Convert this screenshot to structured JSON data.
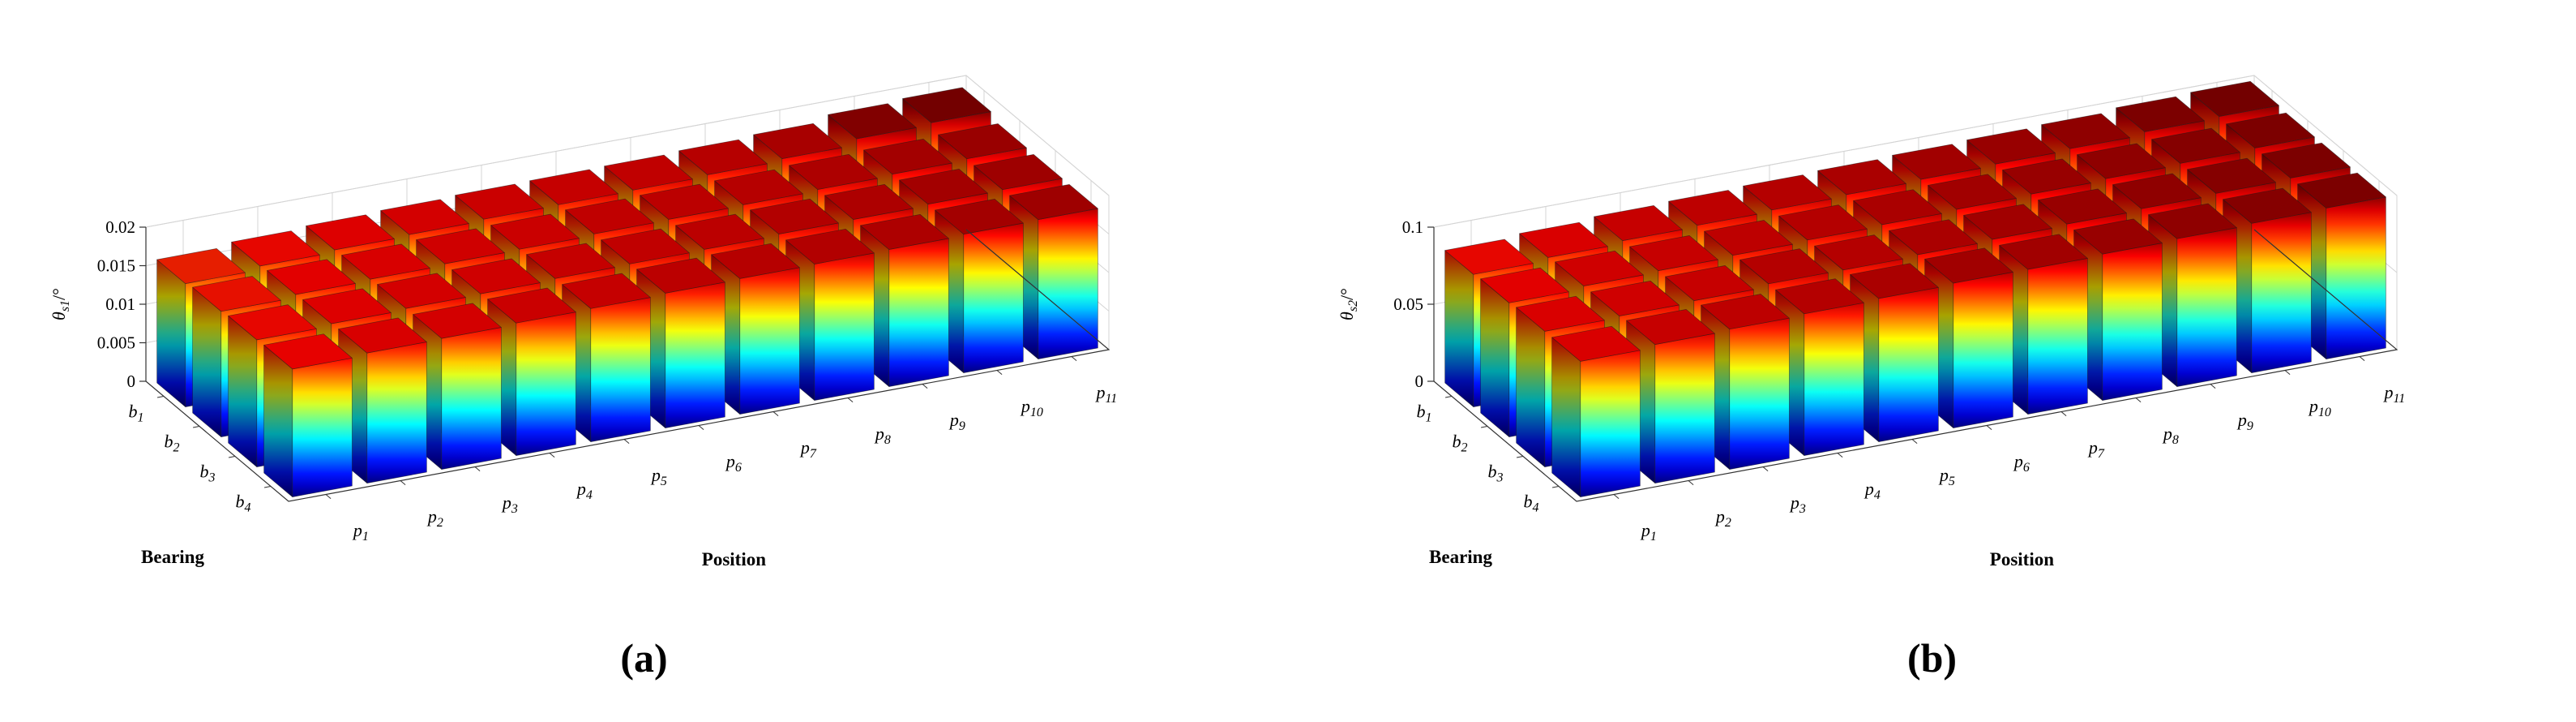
{
  "figure": {
    "background": "#ffffff"
  },
  "chart_data": [
    {
      "type": "bar",
      "subtype": "bar3d",
      "caption": "(a)",
      "xlabel": "Position",
      "ylabel": "Bearing",
      "zlabel": {
        "main": "θ",
        "sub": "s1",
        "suffix": "/°"
      },
      "x_categories": [
        "p1",
        "p2",
        "p3",
        "p4",
        "p5",
        "p6",
        "p7",
        "p8",
        "p9",
        "p10",
        "p11"
      ],
      "y_categories": [
        "b1",
        "b2",
        "b3",
        "b4"
      ],
      "zlim": [
        0,
        0.02
      ],
      "z_ticks": [
        0,
        0.005,
        0.01,
        0.015,
        0.02
      ],
      "z_tick_labels": [
        "0",
        "0.005",
        "0.01",
        "0.015",
        "0.02"
      ],
      "colormap": "jet",
      "colormap_low": "#00008f",
      "colormap_high": "#800000",
      "grid": true,
      "legend": "none",
      "series": [
        {
          "name": "b1",
          "values": [
            0.016,
            0.0165,
            0.0168,
            0.017,
            0.0172,
            0.0173,
            0.0174,
            0.0176,
            0.0179,
            0.0187,
            0.019
          ]
        },
        {
          "name": "b2",
          "values": [
            0.0163,
            0.0167,
            0.0169,
            0.0171,
            0.0172,
            0.0174,
            0.0175,
            0.0176,
            0.0178,
            0.018,
            0.0182
          ]
        },
        {
          "name": "b3",
          "values": [
            0.0165,
            0.0168,
            0.017,
            0.0171,
            0.0173,
            0.0174,
            0.0175,
            0.0177,
            0.0178,
            0.018,
            0.0181
          ]
        },
        {
          "name": "b4",
          "values": [
            0.0166,
            0.0169,
            0.017,
            0.0172,
            0.0173,
            0.0175,
            0.0176,
            0.0177,
            0.0178,
            0.018,
            0.0181
          ]
        }
      ]
    },
    {
      "type": "bar",
      "subtype": "bar3d",
      "caption": "(b)",
      "xlabel": "Position",
      "ylabel": "Bearing",
      "zlabel": {
        "main": "θ",
        "sub": "s2",
        "suffix": "/°"
      },
      "x_categories": [
        "p1",
        "p2",
        "p3",
        "p4",
        "p5",
        "p6",
        "p7",
        "p8",
        "p9",
        "p10",
        "p11"
      ],
      "y_categories": [
        "b1",
        "b2",
        "b3",
        "b4"
      ],
      "zlim": [
        0,
        0.1
      ],
      "z_ticks": [
        0,
        0.05,
        0.1
      ],
      "z_tick_labels": [
        "0",
        "0.05",
        "0.1"
      ],
      "colormap": "jet",
      "colormap_low": "#00008f",
      "colormap_high": "#800000",
      "grid": true,
      "legend": "none",
      "series": [
        {
          "name": "b1",
          "values": [
            0.086,
            0.088,
            0.09,
            0.091,
            0.092,
            0.093,
            0.094,
            0.095,
            0.096,
            0.098,
            0.099
          ]
        },
        {
          "name": "b2",
          "values": [
            0.087,
            0.089,
            0.09,
            0.091,
            0.092,
            0.093,
            0.094,
            0.095,
            0.096,
            0.097,
            0.098
          ]
        },
        {
          "name": "b3",
          "values": [
            0.088,
            0.089,
            0.09,
            0.092,
            0.092,
            0.093,
            0.094,
            0.095,
            0.096,
            0.097,
            0.098
          ]
        },
        {
          "name": "b4",
          "values": [
            0.088,
            0.09,
            0.091,
            0.092,
            0.093,
            0.094,
            0.094,
            0.095,
            0.096,
            0.097,
            0.098
          ]
        }
      ]
    }
  ]
}
